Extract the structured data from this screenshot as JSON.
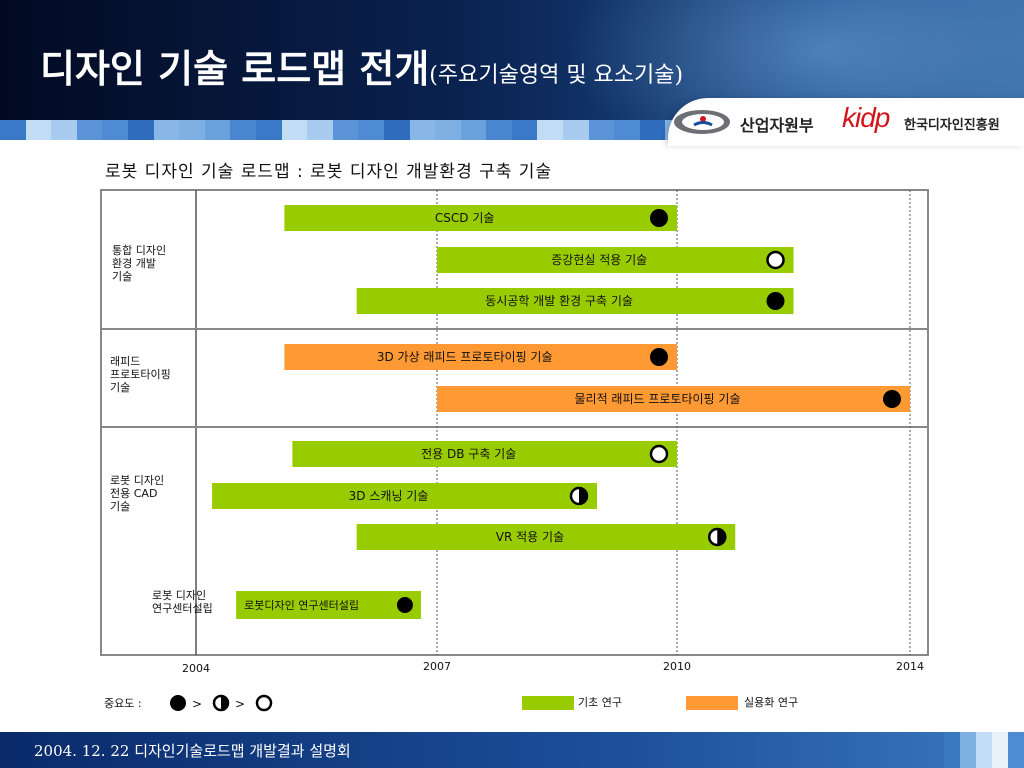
{
  "slide": {
    "title": "디자인 기술 로드맵 전개",
    "subtitle": "(주요기술영역 및 요소기술)",
    "logos": {
      "ministry": "산업자원부",
      "kidp": "kidp",
      "kidp_name": "한국디자인진흥원"
    },
    "footer": "2004. 12. 22 디자인기술로드맵 개발결과 설명회"
  },
  "colors": {
    "basic": "#99cc00",
    "practical": "#ff9933",
    "line": "#888888"
  },
  "chart_data": {
    "type": "gantt",
    "title": "로봇 디자인 기술 로드맵 : 로봇 디자인 개발환경 구축 기술",
    "x_ticks": [
      "2004",
      "2007",
      "2010",
      "2014"
    ],
    "x_tick_values": [
      2004,
      2007,
      2010,
      2014
    ],
    "xlim": [
      2003.8,
      2014.2
    ],
    "categories": [
      {
        "label": [
          "통합 디자인",
          "환경 개발",
          "기술"
        ]
      },
      {
        "label": [
          "래피드",
          "프로토타이핑",
          "기술"
        ]
      },
      {
        "label": [
          "로봇 디자인",
          "전용 CAD",
          "기술"
        ]
      },
      {
        "label": [
          "로봇 디자인",
          "연구센터설립"
        ]
      }
    ],
    "tasks": [
      {
        "label": "CSCD 기술",
        "category": 0,
        "start": 2005.1,
        "end": 2010.0,
        "type": "basic",
        "importance": "full"
      },
      {
        "label": "증강현실 적용 기술",
        "category": 0,
        "start": 2007.0,
        "end": 2012.0,
        "type": "basic",
        "importance": "empty"
      },
      {
        "label": "동시공학 개발 환경 구축 기술",
        "category": 0,
        "start": 2006.0,
        "end": 2012.0,
        "type": "basic",
        "importance": "full"
      },
      {
        "label": "3D 가상 래피드 프로토타이핑 기술",
        "category": 1,
        "start": 2005.1,
        "end": 2010.0,
        "type": "practical",
        "importance": "full"
      },
      {
        "label": "물리적 래피드 프로토타이핑 기술",
        "category": 1,
        "start": 2007.0,
        "end": 2014.0,
        "type": "practical",
        "importance": "full"
      },
      {
        "label": "전용 DB 구축 기술",
        "category": 2,
        "start": 2005.2,
        "end": 2010.0,
        "type": "basic",
        "importance": "empty"
      },
      {
        "label": "3D 스캐닝 기술",
        "category": 2,
        "start": 2004.2,
        "end": 2009.0,
        "type": "basic",
        "importance": "half"
      },
      {
        "label": "VR 적용 기술",
        "category": 2,
        "start": 2006.0,
        "end": 2011.0,
        "type": "basic",
        "importance": "half"
      },
      {
        "label": "로봇디자인 연구센터설립",
        "category": 3,
        "start": 2004.5,
        "end": 2006.8,
        "type": "basic",
        "importance": "full"
      }
    ],
    "importance_legend": {
      "label": "중요도 :",
      "order": [
        "full",
        "half",
        "empty"
      ],
      "separator": ">"
    },
    "type_legend": [
      {
        "type": "basic",
        "label": "기초 연구"
      },
      {
        "type": "practical",
        "label": "실용화 연구"
      }
    ]
  }
}
